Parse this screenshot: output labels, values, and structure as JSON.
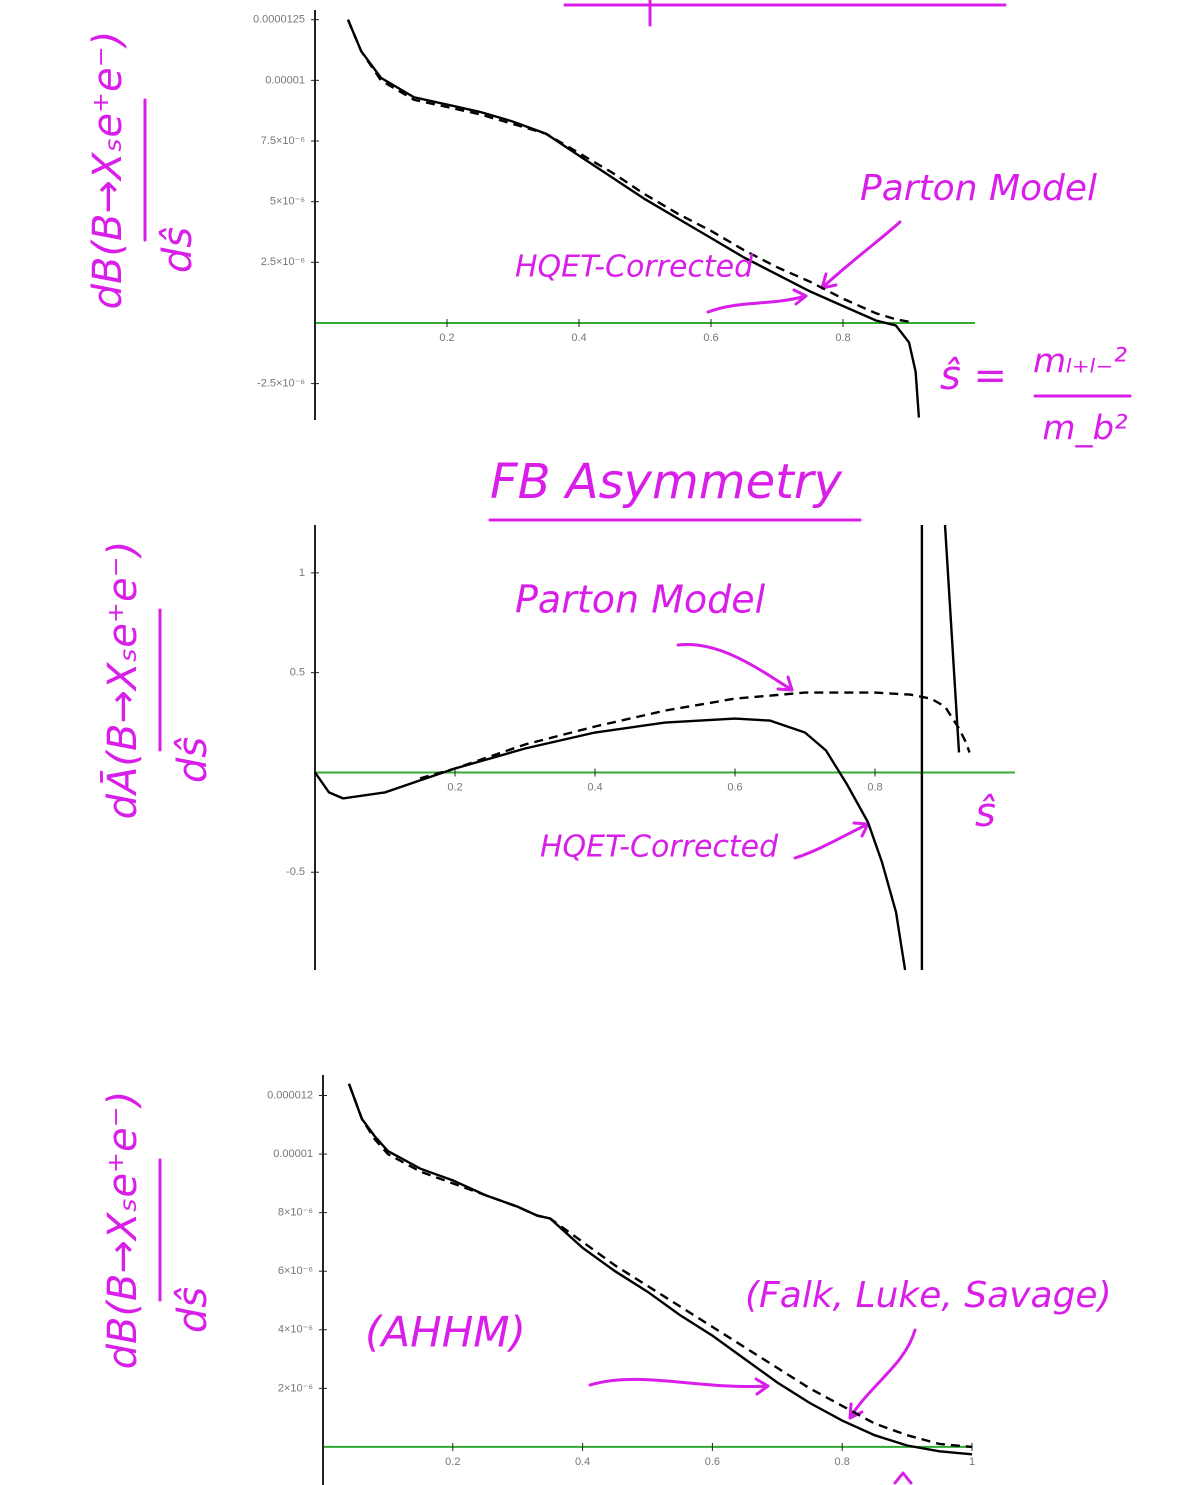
{
  "chart_data": [
    {
      "type": "line",
      "y_label": {
        "numerator": "dB(B→Xₛe⁺e⁻)",
        "denominator": "dŝ"
      },
      "x_label": {
        "symbol": "ŝ =",
        "numerator": "mₗ₊ₗ₋²",
        "denominator": "m_b²"
      },
      "annotations": [
        "Parton Model",
        "HQET-Corrected"
      ],
      "annotation_color": "#d81ee8",
      "xlim": [
        0,
        1
      ],
      "ylim": [
        -4e-06,
        1.29e-05
      ],
      "xticks": [
        0.2,
        0.4,
        0.6,
        0.8
      ],
      "yticks": [
        1.25e-05,
        1e-05,
        {
          "value": 7.5e-06,
          "label": "7.5×10⁻⁶"
        },
        {
          "value": 5e-06,
          "label": "5×10⁻⁶"
        },
        {
          "value": 2.5e-06,
          "label": "2.5×10⁻⁶"
        },
        {
          "value": -2.5e-06,
          "label": "-2.5×10⁻⁶"
        }
      ],
      "series": [
        {
          "name": "HQET-Corrected",
          "color": "#000000",
          "style": "solid",
          "x": [
            0.05,
            0.07,
            0.1,
            0.15,
            0.2,
            0.25,
            0.3,
            0.35,
            0.4,
            0.45,
            0.5,
            0.55,
            0.6,
            0.65,
            0.7,
            0.75,
            0.8,
            0.85,
            0.88,
            0.9,
            0.91,
            0.915
          ],
          "values": [
            1.25e-05,
            1.12e-05,
            1.01e-05,
            9.3e-06,
            9e-06,
            8.7e-06,
            8.3e-06,
            7.8e-06,
            6.9e-06,
            6e-06,
            5.1e-06,
            4.3e-06,
            3.5e-06,
            2.7e-06,
            2e-06,
            1.3e-06,
            7e-07,
            1e-07,
            -1e-07,
            -8e-07,
            -2e-06,
            -3.9e-06
          ]
        },
        {
          "name": "Parton Model",
          "color": "#000000",
          "style": "dashed",
          "x": [
            0.05,
            0.07,
            0.1,
            0.15,
            0.2,
            0.25,
            0.3,
            0.35,
            0.4,
            0.45,
            0.5,
            0.55,
            0.6,
            0.65,
            0.7,
            0.75,
            0.8,
            0.85,
            0.88,
            0.9
          ],
          "values": [
            1.25e-05,
            1.12e-05,
            1e-05,
            9.2e-06,
            8.9e-06,
            8.6e-06,
            8.2e-06,
            7.8e-06,
            7e-06,
            6.2e-06,
            5.3e-06,
            4.5e-06,
            3.8e-06,
            3e-06,
            2.3e-06,
            1.7e-06,
            1e-06,
            4e-07,
            1.5e-07,
            5e-08
          ]
        }
      ]
    },
    {
      "type": "line",
      "title": "FB Asymmetry",
      "y_label": {
        "numerator": "dĀ(B→Xₛe⁺e⁻)",
        "denominator": "dŝ"
      },
      "x_label": {
        "symbol": "ŝ"
      },
      "annotations": [
        "Parton Model",
        "HQET-Corrected"
      ],
      "annotation_color": "#d81ee8",
      "xlim": [
        0,
        1
      ],
      "ylim": [
        -0.99,
        1.24
      ],
      "xticks": [
        0.2,
        0.4,
        0.6,
        0.8
      ],
      "yticks": [
        1,
        0.5,
        -0.5
      ],
      "series": [
        {
          "name": "HQET-Corrected",
          "color": "#000000",
          "style": "solid",
          "x": [
            0,
            0.02,
            0.04,
            0.1,
            0.15,
            0.2,
            0.3,
            0.4,
            0.5,
            0.6,
            0.65,
            0.7,
            0.73,
            0.76,
            0.79,
            0.81,
            0.83,
            0.843,
            null,
            0.867,
            0.867,
            null,
            0.9,
            0.92
          ],
          "values": [
            0,
            -0.1,
            -0.13,
            -0.1,
            -0.04,
            0.02,
            0.12,
            0.2,
            0.25,
            0.27,
            0.26,
            0.2,
            0.11,
            -0.06,
            -0.25,
            -0.45,
            -0.7,
            -0.99,
            null,
            -0.99,
            1.24,
            null,
            1.24,
            0.1
          ]
        },
        {
          "name": "Parton Model",
          "color": "#000000",
          "style": "dashed",
          "x": [
            0.15,
            0.2,
            0.3,
            0.4,
            0.5,
            0.6,
            0.7,
            0.75,
            0.8,
            0.85,
            0.88,
            0.9,
            0.92,
            0.93,
            0.935
          ],
          "values": [
            -0.03,
            0.02,
            0.14,
            0.23,
            0.31,
            0.37,
            0.4,
            0.4,
            0.4,
            0.39,
            0.37,
            0.33,
            0.22,
            0.15,
            0.1
          ]
        }
      ]
    },
    {
      "type": "line",
      "y_label": {
        "numerator": "dB(B→Xₛe⁺e⁻)",
        "denominator": "dŝ"
      },
      "annotations": [
        "(AHHM)",
        "(Falk, Luke, Savage)"
      ],
      "annotation_color": "#d81ee8",
      "xlim": [
        0,
        1
      ],
      "ylim": [
        -1.3e-06,
        1.27e-05
      ],
      "xticks": [
        0.2,
        0.4,
        0.6,
        0.8,
        1
      ],
      "yticks": [
        1.2e-05,
        1e-05,
        {
          "value": 8e-06,
          "label": "8×10⁻⁶"
        },
        {
          "value": 6e-06,
          "label": "6×10⁻⁶"
        },
        {
          "value": 4e-06,
          "label": "4×10⁻⁶"
        },
        {
          "value": 2e-06,
          "label": "2×10⁻⁶"
        }
      ],
      "series": [
        {
          "name": "HQET-Corrected",
          "color": "#000000",
          "style": "solid",
          "x": [
            0.04,
            0.06,
            0.08,
            0.1,
            0.15,
            0.2,
            0.25,
            0.3,
            0.33,
            0.35,
            0.4,
            0.45,
            0.5,
            0.55,
            0.6,
            0.65,
            0.7,
            0.75,
            0.8,
            0.85,
            0.9,
            0.95,
            1.0
          ],
          "values": [
            1.24e-05,
            1.12e-05,
            1.06e-05,
            1.01e-05,
            9.5e-06,
            9.1e-06,
            8.6e-06,
            8.2e-06,
            7.9e-06,
            7.8e-06,
            6.8e-06,
            6e-06,
            5.3e-06,
            4.5e-06,
            3.8e-06,
            3e-06,
            2.2e-06,
            1.5e-06,
            9e-07,
            4e-07,
            5e-08,
            -1.5e-07,
            -2.5e-07
          ]
        },
        {
          "name": "Parton Model",
          "color": "#000000",
          "style": "dashed",
          "x": [
            0.04,
            0.06,
            0.08,
            0.1,
            0.15,
            0.2,
            0.25,
            0.3,
            0.33,
            0.35,
            0.4,
            0.45,
            0.5,
            0.55,
            0.6,
            0.65,
            0.7,
            0.75,
            0.8,
            0.85,
            0.9,
            0.95,
            1.0
          ],
          "values": [
            1.24e-05,
            1.12e-05,
            1.05e-05,
            1e-05,
            9.4e-06,
            9e-06,
            8.6e-06,
            8.2e-06,
            7.9e-06,
            7.8e-06,
            7e-06,
            6.2e-06,
            5.5e-06,
            4.8e-06,
            4.1e-06,
            3.4e-06,
            2.7e-06,
            2e-06,
            1.4e-06,
            8e-07,
            4e-07,
            1e-07,
            0
          ]
        }
      ]
    }
  ]
}
